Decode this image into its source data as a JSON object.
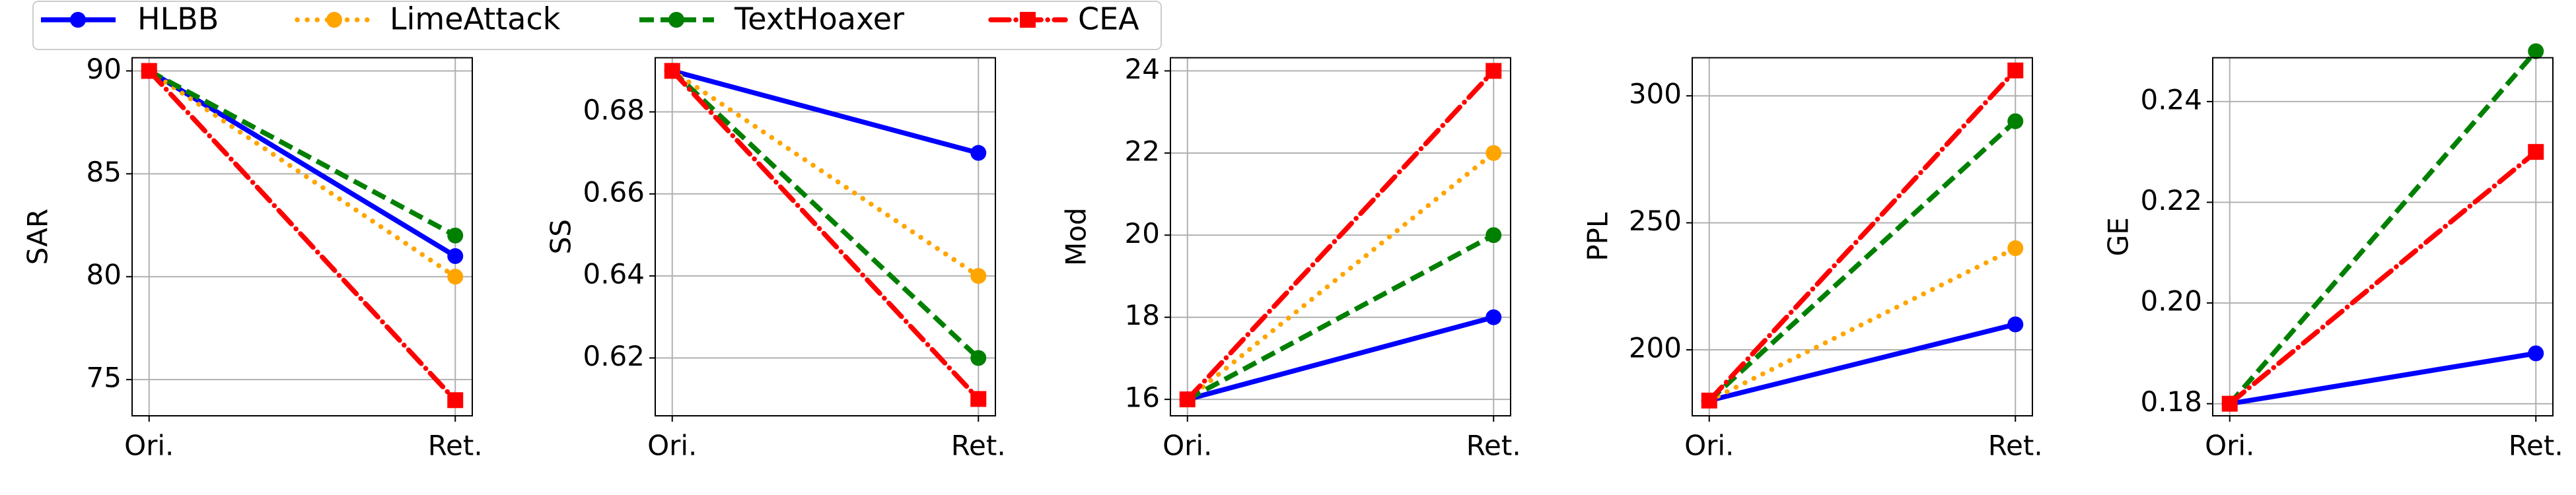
{
  "chart_data": [
    {
      "type": "line",
      "categories": [
        "Ori.",
        "Ret."
      ],
      "ylabel": "SAR",
      "ylim": [
        73.24,
        90.64
      ],
      "yticks": [
        75,
        80,
        85,
        90
      ],
      "grid": true,
      "series": [
        {
          "name": "HLBB",
          "color": "#0000ff",
          "linestyle": "solid",
          "marker": "circle",
          "values": [
            90,
            81
          ]
        },
        {
          "name": "LimeAttack",
          "color": "#ffa500",
          "linestyle": "dotted",
          "marker": "circle",
          "values": [
            90,
            80
          ]
        },
        {
          "name": "TextHoaxer",
          "color": "#008000",
          "linestyle": "dashed",
          "marker": "circle",
          "values": [
            90,
            82
          ]
        },
        {
          "name": "CEA",
          "color": "#ff0000",
          "linestyle": "dashdot",
          "marker": "square",
          "values": [
            90,
            74
          ]
        }
      ]
    },
    {
      "type": "line",
      "categories": [
        "Ori.",
        "Ret."
      ],
      "ylabel": "SS",
      "ylim": [
        0.6059,
        0.6932
      ],
      "yticks": [
        0.62,
        0.64,
        0.66,
        0.68
      ],
      "grid": true,
      "series": [
        {
          "color": "#0000ff",
          "linestyle": "solid",
          "marker": "circle",
          "values": [
            0.69,
            0.67
          ]
        },
        {
          "color": "#ffa500",
          "linestyle": "dotted",
          "marker": "circle",
          "values": [
            0.69,
            0.64
          ]
        },
        {
          "color": "#008000",
          "linestyle": "dashed",
          "marker": "circle",
          "values": [
            0.69,
            0.62
          ]
        },
        {
          "color": "#ff0000",
          "linestyle": "dashdot",
          "marker": "square",
          "values": [
            0.69,
            0.61
          ]
        }
      ]
    },
    {
      "type": "line",
      "categories": [
        "Ori.",
        "Ret."
      ],
      "ylabel": "Mod",
      "ylim": [
        15.6,
        24.32
      ],
      "yticks": [
        16,
        18,
        20,
        22,
        24
      ],
      "grid": true,
      "series": [
        {
          "color": "#0000ff",
          "linestyle": "solid",
          "marker": "circle",
          "values": [
            16,
            18
          ]
        },
        {
          "color": "#ffa500",
          "linestyle": "dotted",
          "marker": "circle",
          "values": [
            16,
            22
          ]
        },
        {
          "color": "#008000",
          "linestyle": "dashed",
          "marker": "circle",
          "values": [
            16,
            20
          ]
        },
        {
          "color": "#ff0000",
          "linestyle": "dashdot",
          "marker": "square",
          "values": [
            16,
            24
          ]
        }
      ]
    },
    {
      "type": "line",
      "categories": [
        "Ori.",
        "Ret."
      ],
      "ylabel": "PPL",
      "ylim": [
        174,
        315
      ],
      "yticks": [
        200,
        250,
        300
      ],
      "grid": true,
      "series": [
        {
          "color": "#0000ff",
          "linestyle": "solid",
          "marker": "circle",
          "values": [
            180,
            210
          ]
        },
        {
          "color": "#ffa500",
          "linestyle": "dotted",
          "marker": "circle",
          "values": [
            180,
            240
          ]
        },
        {
          "color": "#008000",
          "linestyle": "dashed",
          "marker": "circle",
          "values": [
            180,
            290
          ]
        },
        {
          "color": "#ff0000",
          "linestyle": "dashdot",
          "marker": "square",
          "values": [
            180,
            310
          ]
        }
      ]
    },
    {
      "type": "line",
      "categories": [
        "Ori.",
        "Ret."
      ],
      "ylabel": "GE",
      "ylim": [
        0.1776,
        0.2487
      ],
      "yticks": [
        0.18,
        {
          "value": 0.2,
          "label": "0.20"
        },
        0.22,
        0.24
      ],
      "grid": true,
      "series": [
        {
          "color": "#0000ff",
          "linestyle": "solid",
          "marker": "circle",
          "values": [
            0.18,
            0.19
          ]
        },
        {
          "color": "#008000",
          "linestyle": "dashed",
          "marker": "circle",
          "values": [
            0.18,
            0.25
          ]
        },
        {
          "color": "#ff0000",
          "linestyle": "dashdot",
          "marker": "square",
          "values": [
            0.18,
            0.23
          ]
        }
      ]
    }
  ]
}
